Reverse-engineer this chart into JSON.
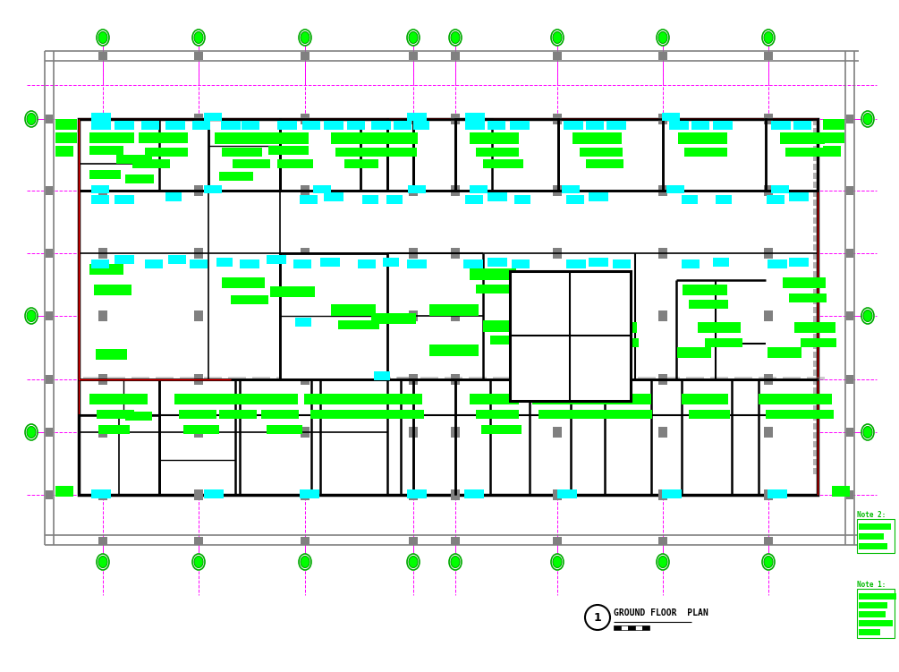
{
  "bg": "#ffffff",
  "title": "GROUND FLOOR  PLAN",
  "fig_w": 10.05,
  "fig_h": 7.51,
  "dpi": 100,
  "magenta": "#ff00ff",
  "black": "#000000",
  "gray": "#808080",
  "green": "#00ff00",
  "cyan": "#00ffff",
  "red": "#ff0000",
  "dark_green": "#008800",
  "note1_label": "Note 1:",
  "note2_label": "Note 2:",
  "col_marker_color": "#00aa00",
  "note_label_color": "#00bb00"
}
